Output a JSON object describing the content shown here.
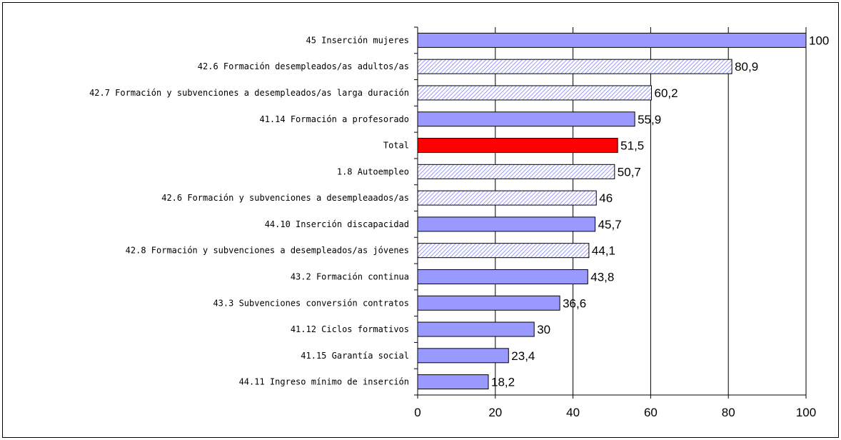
{
  "chart_data": {
    "type": "bar",
    "orientation": "horizontal",
    "categories": [
      "45 Inserción mujeres",
      "42.6 Formación desempleados/as adultos/as",
      "42.7 Formación y subvenciones a desempleados/as larga duración",
      "41.14 Formación a profesorado",
      "Total",
      "1.8 Autoempleo",
      "42.6 Formación y subvenciones a desempleaados/as",
      "44.10 Inserción discapacidad",
      "42.8 Formación y subvenciones a desempleados/as jóvenes",
      "43.2 Formación continua",
      "43.3 Subvenciones conversión contratos",
      "41.12 Ciclos formativos",
      "41.15 Garantía social",
      "44.11 Ingreso mínimo de inserción"
    ],
    "values": [
      100,
      80.9,
      60.2,
      55.9,
      51.5,
      50.7,
      46,
      45.7,
      44.1,
      43.8,
      36.6,
      30,
      23.4,
      18.2
    ],
    "value_labels": [
      "100",
      "80,9",
      "60,2",
      "55,9",
      "51,5",
      "50,7",
      "46",
      "45,7",
      "44,1",
      "43,8",
      "36,6",
      "30",
      "23,4",
      "18,2"
    ],
    "bar_styles": [
      "solid",
      "hatched",
      "hatched",
      "solid",
      "highlight",
      "hatched",
      "hatched",
      "solid",
      "hatched",
      "solid",
      "solid",
      "solid",
      "solid",
      "solid"
    ],
    "xlim": [
      0,
      100
    ],
    "xticks": [
      0,
      20,
      40,
      60,
      80,
      100
    ],
    "xtick_labels": [
      "0",
      "20",
      "40",
      "60",
      "80",
      "100"
    ],
    "title": "",
    "xlabel": "",
    "ylabel": "",
    "grid": "vertical",
    "legend": "none",
    "colors": {
      "solid": "#9999ff",
      "hatched_bg": "#ffffff",
      "hatched_line": "#9999ff",
      "highlight": "#ff0000",
      "outline": "#000000"
    }
  }
}
